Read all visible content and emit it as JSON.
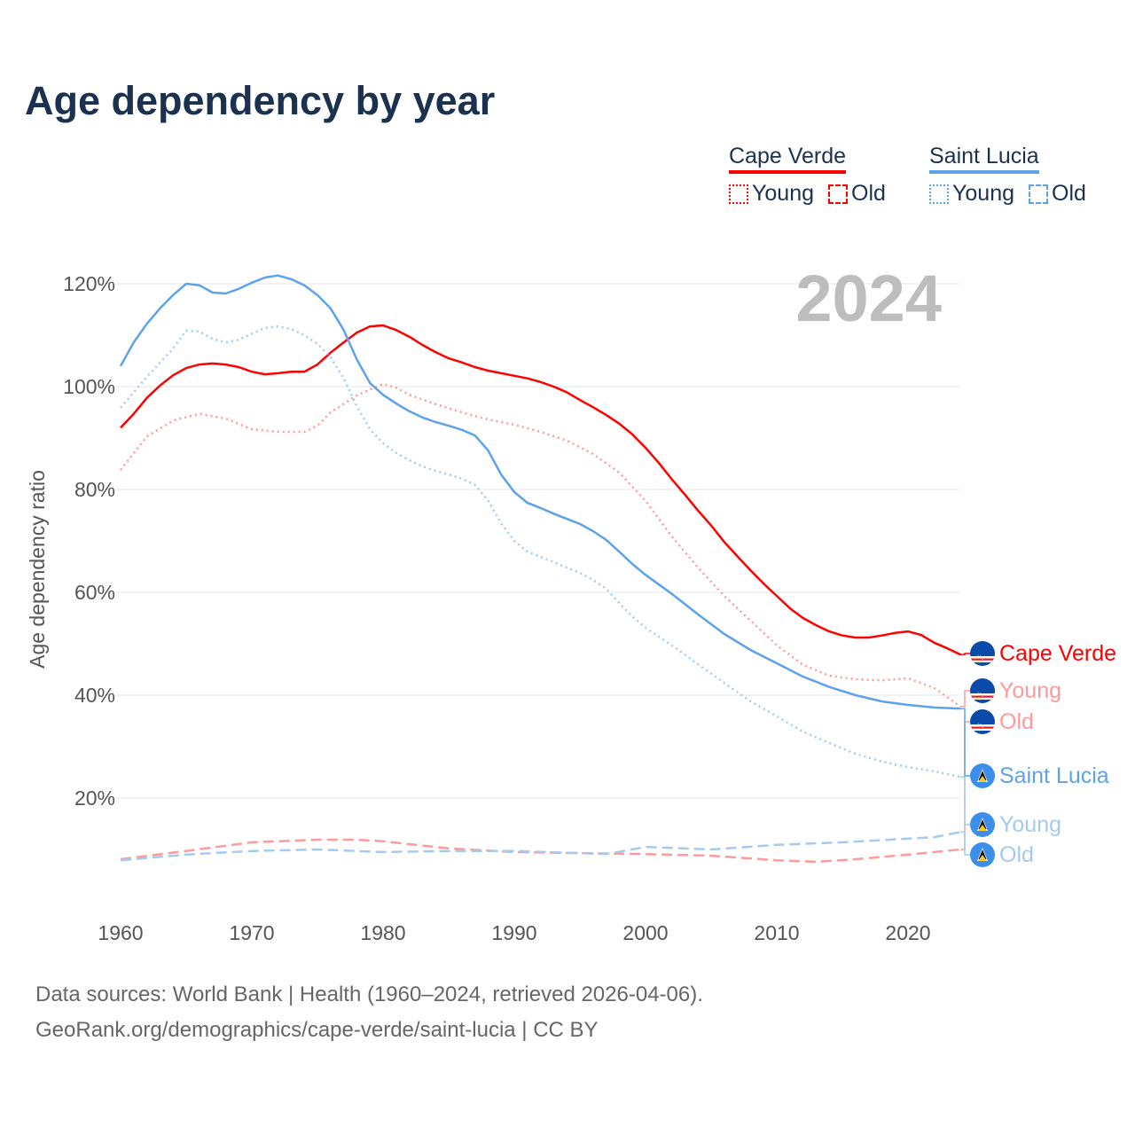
{
  "title": "Age dependency by year",
  "legend": [
    {
      "name": "Cape Verde",
      "color": "#ff0000",
      "items": [
        "Young",
        "Old"
      ]
    },
    {
      "name": "Saint Lucia",
      "color": "#5ea2ea",
      "items": [
        "Young",
        "Old"
      ]
    }
  ],
  "current_year_label": "2024",
  "footer": {
    "line1": "Data sources: World Bank | Health (1960–2024, retrieved 2026-04-06).",
    "line2": "GeoRank.org/demographics/cape-verde/saint-lucia | CC BY"
  },
  "chart_data": {
    "type": "line",
    "title": "Age dependency by year",
    "xlabel": "",
    "ylabel": "Age dependency ratio",
    "xlim": [
      1960,
      2024
    ],
    "ylim": [
      0,
      125
    ],
    "x_ticks": [
      "1960",
      "1970",
      "1980",
      "1990",
      "2000",
      "2010",
      "2020"
    ],
    "y_ticks": [
      "20%",
      "40%",
      "60%",
      "80%",
      "100%",
      "120%"
    ],
    "grid": true,
    "legend_position": "top-right",
    "series": [
      {
        "name": "Cape Verde",
        "end_label": "Cape Verde",
        "color": "#ff0000",
        "style": "solid",
        "points": [
          [
            1960,
            92
          ],
          [
            1961,
            94.7
          ],
          [
            1962,
            97.8
          ],
          [
            1963,
            100.2
          ],
          [
            1964,
            102.2
          ],
          [
            1965,
            103.6
          ],
          [
            1966,
            104.3
          ],
          [
            1967,
            104.5
          ],
          [
            1968,
            104.3
          ],
          [
            1969,
            103.8
          ],
          [
            1970,
            102.9
          ],
          [
            1971,
            102.4
          ],
          [
            1972,
            102.6
          ],
          [
            1973,
            102.9
          ],
          [
            1974,
            102.9
          ],
          [
            1975,
            104.3
          ],
          [
            1976,
            106.6
          ],
          [
            1977,
            108.6
          ],
          [
            1978,
            110.5
          ],
          [
            1979,
            111.7
          ],
          [
            1980,
            111.9
          ],
          [
            1981,
            111
          ],
          [
            1982,
            109.7
          ],
          [
            1983,
            108.1
          ],
          [
            1984,
            106.7
          ],
          [
            1985,
            105.5
          ],
          [
            1986,
            104.7
          ],
          [
            1987,
            103.8
          ],
          [
            1988,
            103.1
          ],
          [
            1989,
            102.6
          ],
          [
            1990,
            102.1
          ],
          [
            1991,
            101.6
          ],
          [
            1992,
            100.9
          ],
          [
            1993,
            100
          ],
          [
            1994,
            98.9
          ],
          [
            1995,
            97.4
          ],
          [
            1996,
            96
          ],
          [
            1997,
            94.5
          ],
          [
            1998,
            92.8
          ],
          [
            1999,
            90.7
          ],
          [
            2000,
            88.1
          ],
          [
            2001,
            85.2
          ],
          [
            2002,
            82
          ],
          [
            2003,
            79
          ],
          [
            2004,
            75.9
          ],
          [
            2005,
            73
          ],
          [
            2006,
            69.8
          ],
          [
            2007,
            67
          ],
          [
            2008,
            64.3
          ],
          [
            2009,
            61.7
          ],
          [
            2010,
            59.3
          ],
          [
            2011,
            56.9
          ],
          [
            2012,
            55
          ],
          [
            2013,
            53.6
          ],
          [
            2014,
            52.4
          ],
          [
            2015,
            51.6
          ],
          [
            2016,
            51.2
          ],
          [
            2017,
            51.2
          ],
          [
            2018,
            51.6
          ],
          [
            2019,
            52.1
          ],
          [
            2020,
            52.4
          ],
          [
            2021,
            51.7
          ],
          [
            2022,
            50.2
          ],
          [
            2023,
            49.1
          ],
          [
            2024,
            47.9
          ]
        ]
      },
      {
        "name": "Cape Verde Young",
        "end_label": "Young",
        "color": "#ff9a9a",
        "style": "dotted",
        "points": [
          [
            1960,
            83.8
          ],
          [
            1962,
            90.3
          ],
          [
            1964,
            93.4
          ],
          [
            1966,
            94.7
          ],
          [
            1968,
            93.8
          ],
          [
            1970,
            91.7
          ],
          [
            1972,
            91.2
          ],
          [
            1974,
            91.2
          ],
          [
            1975,
            92.4
          ],
          [
            1976,
            95
          ],
          [
            1978,
            98.3
          ],
          [
            1980,
            100.5
          ],
          [
            1981,
            99.8
          ],
          [
            1982,
            98.4
          ],
          [
            1984,
            96.6
          ],
          [
            1986,
            95
          ],
          [
            1988,
            93.6
          ],
          [
            1990,
            92.6
          ],
          [
            1992,
            91.2
          ],
          [
            1994,
            89.5
          ],
          [
            1996,
            86.9
          ],
          [
            1998,
            83.3
          ],
          [
            2000,
            77.8
          ],
          [
            2002,
            70.9
          ],
          [
            2004,
            64.8
          ],
          [
            2006,
            59.3
          ],
          [
            2008,
            54.5
          ],
          [
            2010,
            49.7
          ],
          [
            2012,
            45.9
          ],
          [
            2014,
            43.8
          ],
          [
            2016,
            43.1
          ],
          [
            2018,
            42.9
          ],
          [
            2020,
            43.3
          ],
          [
            2022,
            41.4
          ],
          [
            2024,
            37.8
          ]
        ]
      },
      {
        "name": "Cape Verde Old",
        "end_label": "Old",
        "color": "#ff9a9a",
        "style": "dashed",
        "points": [
          [
            1960,
            8.1
          ],
          [
            1965,
            9.7
          ],
          [
            1970,
            11.4
          ],
          [
            1975,
            11.9
          ],
          [
            1978,
            11.9
          ],
          [
            1980,
            11.6
          ],
          [
            1985,
            10.2
          ],
          [
            1990,
            9.5
          ],
          [
            1995,
            9.3
          ],
          [
            2000,
            9.1
          ],
          [
            2005,
            8.8
          ],
          [
            2010,
            7.9
          ],
          [
            2013,
            7.6
          ],
          [
            2016,
            8.1
          ],
          [
            2020,
            9
          ],
          [
            2024,
            10
          ]
        ]
      },
      {
        "name": "Saint Lucia",
        "end_label": "Saint Lucia",
        "color": "#5ea2ea",
        "style": "solid",
        "points": [
          [
            1960,
            104
          ],
          [
            1961,
            108.6
          ],
          [
            1962,
            112.2
          ],
          [
            1963,
            115.2
          ],
          [
            1964,
            117.8
          ],
          [
            1965,
            120
          ],
          [
            1966,
            119.7
          ],
          [
            1967,
            118.3
          ],
          [
            1968,
            118.1
          ],
          [
            1969,
            119
          ],
          [
            1970,
            120.2
          ],
          [
            1971,
            121.2
          ],
          [
            1972,
            121.6
          ],
          [
            1973,
            120.9
          ],
          [
            1974,
            119.7
          ],
          [
            1975,
            117.8
          ],
          [
            1976,
            115.2
          ],
          [
            1977,
            111
          ],
          [
            1978,
            105.3
          ],
          [
            1979,
            100.7
          ],
          [
            1980,
            98.4
          ],
          [
            1981,
            96.7
          ],
          [
            1982,
            95.2
          ],
          [
            1983,
            94
          ],
          [
            1984,
            93.1
          ],
          [
            1985,
            92.4
          ],
          [
            1986,
            91.6
          ],
          [
            1987,
            90.5
          ],
          [
            1988,
            87.6
          ],
          [
            1989,
            82.9
          ],
          [
            1990,
            79.5
          ],
          [
            1991,
            77.4
          ],
          [
            1992,
            76.4
          ],
          [
            1993,
            75.3
          ],
          [
            1994,
            74.3
          ],
          [
            1995,
            73.3
          ],
          [
            1996,
            71.9
          ],
          [
            1997,
            70.2
          ],
          [
            1998,
            67.9
          ],
          [
            1999,
            65.5
          ],
          [
            2000,
            63.4
          ],
          [
            2002,
            59.7
          ],
          [
            2004,
            55.7
          ],
          [
            2006,
            51.9
          ],
          [
            2008,
            48.8
          ],
          [
            2010,
            46.2
          ],
          [
            2012,
            43.6
          ],
          [
            2014,
            41.6
          ],
          [
            2016,
            40
          ],
          [
            2018,
            38.8
          ],
          [
            2020,
            38.1
          ],
          [
            2022,
            37.6
          ],
          [
            2024,
            37.4
          ]
        ]
      },
      {
        "name": "Saint Lucia Young",
        "end_label": "Young",
        "color": "#a3cbf2",
        "style": "dotted",
        "points": [
          [
            1960,
            95.9
          ],
          [
            1962,
            101.9
          ],
          [
            1964,
            107.4
          ],
          [
            1965,
            110.9
          ],
          [
            1966,
            110.7
          ],
          [
            1967,
            109.3
          ],
          [
            1968,
            108.6
          ],
          [
            1969,
            109.1
          ],
          [
            1970,
            110.3
          ],
          [
            1971,
            111.4
          ],
          [
            1972,
            111.7
          ],
          [
            1973,
            111.2
          ],
          [
            1974,
            110
          ],
          [
            1975,
            108.3
          ],
          [
            1976,
            105.7
          ],
          [
            1977,
            101.6
          ],
          [
            1978,
            96.2
          ],
          [
            1979,
            91.7
          ],
          [
            1980,
            89
          ],
          [
            1981,
            87.1
          ],
          [
            1982,
            85.7
          ],
          [
            1983,
            84.5
          ],
          [
            1984,
            83.6
          ],
          [
            1985,
            82.9
          ],
          [
            1986,
            82.1
          ],
          [
            1987,
            80.9
          ],
          [
            1988,
            77.9
          ],
          [
            1989,
            73.4
          ],
          [
            1990,
            70
          ],
          [
            1991,
            67.9
          ],
          [
            1992,
            66.9
          ],
          [
            1993,
            65.9
          ],
          [
            1994,
            64.8
          ],
          [
            1995,
            63.8
          ],
          [
            1996,
            62.4
          ],
          [
            1997,
            60.7
          ],
          [
            1998,
            57.9
          ],
          [
            1999,
            55.3
          ],
          [
            2000,
            53.1
          ],
          [
            2002,
            49.7
          ],
          [
            2004,
            46
          ],
          [
            2006,
            42.4
          ],
          [
            2008,
            38.8
          ],
          [
            2010,
            35.9
          ],
          [
            2012,
            32.9
          ],
          [
            2014,
            30.7
          ],
          [
            2016,
            28.6
          ],
          [
            2018,
            27.1
          ],
          [
            2020,
            26
          ],
          [
            2022,
            25.2
          ],
          [
            2024,
            24.1
          ]
        ]
      },
      {
        "name": "Saint Lucia Old",
        "end_label": "Old",
        "color": "#a3cbf2",
        "style": "dashed",
        "points": [
          [
            1960,
            7.9
          ],
          [
            1965,
            9
          ],
          [
            1970,
            9.7
          ],
          [
            1975,
            10
          ],
          [
            1980,
            9.5
          ],
          [
            1985,
            9.7
          ],
          [
            1990,
            9.7
          ],
          [
            1997,
            9.1
          ],
          [
            2000,
            10.5
          ],
          [
            2005,
            10
          ],
          [
            2010,
            10.9
          ],
          [
            2015,
            11.4
          ],
          [
            2020,
            12.1
          ],
          [
            2022,
            12.4
          ],
          [
            2024,
            13.4
          ]
        ]
      }
    ]
  }
}
